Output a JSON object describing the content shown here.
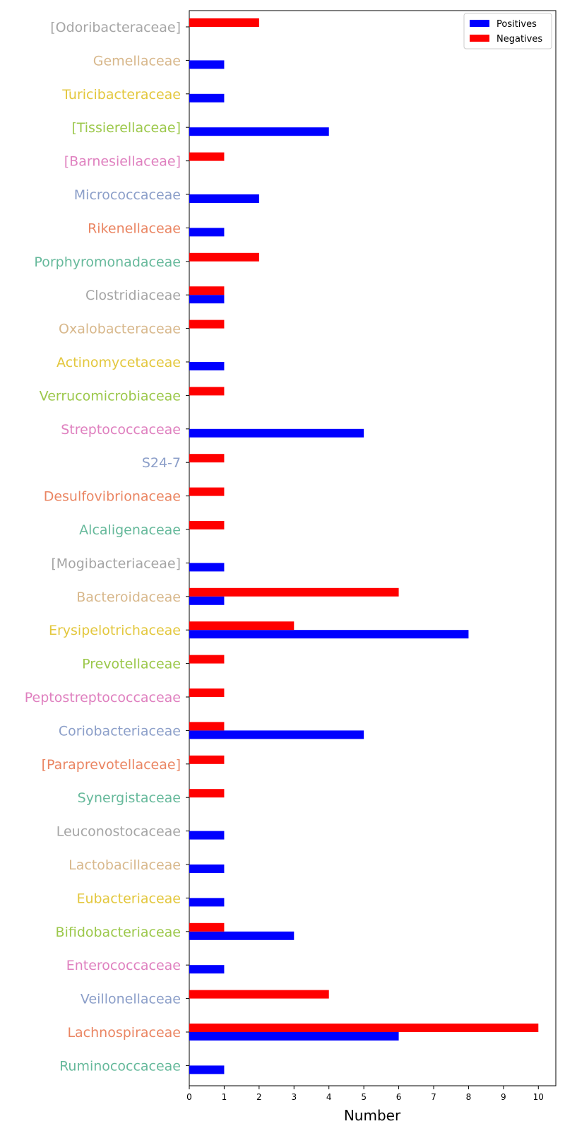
{
  "chart_data": {
    "type": "bar",
    "orientation": "horizontal",
    "xlabel": "Number",
    "xlim": [
      0,
      10.5
    ],
    "xticks": [
      0,
      1,
      2,
      3,
      4,
      5,
      6,
      7,
      8,
      9,
      10
    ],
    "legend_position": "top-right",
    "categories": [
      "[Odoribacteraceae]",
      "Gemellaceae",
      "Turicibacteraceae",
      "[Tissierellaceae]",
      "[Barnesiellaceae]",
      "Micrococcaceae",
      "Rikenellaceae",
      "Porphyromonadaceae",
      "Clostridiaceae",
      "Oxalobacteraceae",
      "Actinomycetaceae",
      "Verrucomicrobiaceae",
      "Streptococcaceae",
      "S24-7",
      "Desulfovibrionaceae",
      "Alcaligenaceae",
      "[Mogibacteriaceae]",
      "Bacteroidaceae",
      "Erysipelotrichaceae",
      "Prevotellaceae",
      "Peptostreptococcaceae",
      "Coriobacteriaceae",
      "[Paraprevotellaceae]",
      "Synergistaceae",
      "Leuconostocaceae",
      "Lactobacillaceae",
      "Eubacteriaceae",
      "Bifidobacteriaceae",
      "Enterococcaceae",
      "Veillonellaceae",
      "Lachnospiraceae",
      "Ruminococcaceae"
    ],
    "category_colors": [
      "#a5a5a5",
      "#d8b88c",
      "#e3c73d",
      "#9cc84b",
      "#df80bf",
      "#8c9fc9",
      "#ea8562",
      "#66b99b",
      "#a5a5a5",
      "#d8b88c",
      "#e3c73d",
      "#9cc84b",
      "#df80bf",
      "#8c9fc9",
      "#ea8562",
      "#66b99b",
      "#a5a5a5",
      "#d8b88c",
      "#e3c73d",
      "#9cc84b",
      "#df80bf",
      "#8c9fc9",
      "#ea8562",
      "#66b99b",
      "#a5a5a5",
      "#d8b88c",
      "#e3c73d",
      "#9cc84b",
      "#df80bf",
      "#8c9fc9",
      "#ea8562",
      "#66b99b"
    ],
    "series": [
      {
        "name": "Positives",
        "color": "#0000ff",
        "values": [
          0,
          1,
          1,
          4,
          0,
          2,
          1,
          0,
          1,
          0,
          1,
          0,
          5,
          0,
          0,
          0,
          1,
          1,
          8,
          0,
          0,
          5,
          0,
          0,
          1,
          1,
          1,
          3,
          1,
          0,
          6,
          1
        ]
      },
      {
        "name": "Negatives",
        "color": "#ff0000",
        "values": [
          2,
          0,
          0,
          0,
          1,
          0,
          0,
          2,
          1,
          1,
          0,
          1,
          0,
          1,
          1,
          1,
          0,
          6,
          3,
          1,
          1,
          1,
          1,
          1,
          0,
          0,
          0,
          1,
          0,
          4,
          10,
          0
        ]
      }
    ]
  }
}
